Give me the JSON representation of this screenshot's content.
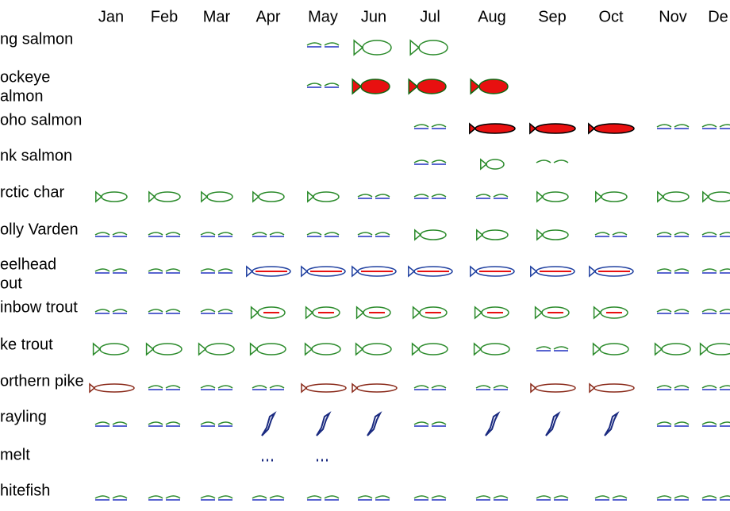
{
  "table": {
    "months": [
      "Jan",
      "Feb",
      "Mar",
      "Apr",
      "May",
      "Jun",
      "Jul",
      "Aug",
      "Sep",
      "Oct",
      "Nov",
      "De"
    ],
    "species": [
      [
        "ng salmon"
      ],
      [
        "ockeye",
        "almon"
      ],
      [
        "oho salmon"
      ],
      [
        "nk salmon"
      ],
      [
        "rctic char"
      ],
      [
        "olly Varden"
      ],
      [
        "eelhead",
        "out"
      ],
      [
        "inbow trout"
      ],
      [
        "ke trout"
      ],
      [
        "orthern pike"
      ],
      [
        "rayling"
      ],
      [
        "melt"
      ],
      [
        "hitefish"
      ]
    ]
  }
}
